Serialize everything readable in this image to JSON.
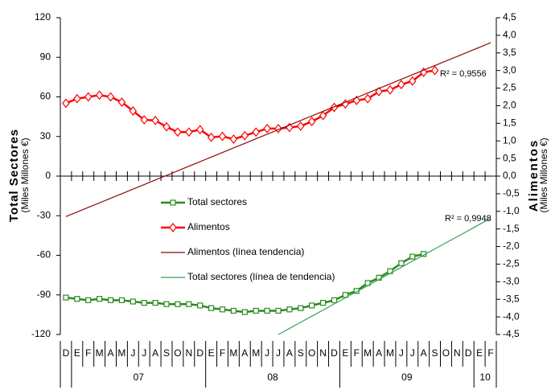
{
  "chart_data": {
    "type": "line",
    "y_axis_title": "Total Sectores",
    "y_axis_subtitle": "(Miles Millones €)",
    "y2_axis_title": "Alimentos",
    "y2_axis_subtitle": "(Miles Millones €)",
    "category_groups": [
      {
        "label": null,
        "categories": [
          "D"
        ]
      },
      {
        "label": "07",
        "categories": [
          "E",
          "F",
          "M",
          "A",
          "M",
          "J",
          "J",
          "A",
          "S",
          "O",
          "N",
          "D"
        ]
      },
      {
        "label": "08",
        "categories": [
          "E",
          "F",
          "M",
          "A",
          "M",
          "J",
          "J",
          "A",
          "S",
          "O",
          "N",
          "D"
        ]
      },
      {
        "label": "09",
        "categories": [
          "E",
          "F",
          "M",
          "A",
          "M",
          "J",
          "J",
          "A",
          "S",
          "O",
          "N",
          "D"
        ]
      },
      {
        "label": "10",
        "categories": [
          "E",
          "F"
        ]
      }
    ],
    "ylim": [
      -120,
      120
    ],
    "yticks": [
      -120,
      -90,
      -60,
      -30,
      0,
      30,
      60,
      90,
      120
    ],
    "y2lim": [
      -4.5,
      4.5
    ],
    "y2ticks": [
      {
        "value": -4.5,
        "label": "-4,5"
      },
      {
        "value": -4,
        "label": "-4,0"
      },
      {
        "value": -3.5,
        "label": "-3,5"
      },
      {
        "value": -3,
        "label": "-3,0"
      },
      {
        "value": -2.5,
        "label": "-2,5"
      },
      {
        "value": -2,
        "label": "-2,0"
      },
      {
        "value": -1.5,
        "label": "-1,5"
      },
      {
        "value": -1,
        "label": "-1,0"
      },
      {
        "value": -0.5,
        "label": "-0,5"
      },
      {
        "value": 0,
        "label": "0,0"
      },
      {
        "value": 0.5,
        "label": "0,5"
      },
      {
        "value": 1,
        "label": "1,0"
      },
      {
        "value": 1.5,
        "label": "1,5"
      },
      {
        "value": 2,
        "label": "2,0"
      },
      {
        "value": 2.5,
        "label": "2,5"
      },
      {
        "value": 3,
        "label": "3,0"
      },
      {
        "value": 3.5,
        "label": "3,5"
      },
      {
        "value": 4,
        "label": "4,0"
      },
      {
        "value": 4.5,
        "label": "4,5"
      }
    ],
    "grid": false,
    "series": [
      {
        "name": "Total sectores",
        "color": "#2a8a1e",
        "marker": "square",
        "width": 2.5,
        "values": [
          -92,
          -93,
          -94,
          -93,
          -94,
          -94,
          -95,
          -96,
          -96,
          -97,
          -97,
          -97,
          -98,
          -100,
          -101,
          -102,
          -103,
          -102,
          -102,
          -102,
          -101,
          -100,
          -98,
          -96,
          -94,
          -90,
          -87,
          -81,
          -77,
          -72,
          -66,
          -61,
          -59
        ]
      },
      {
        "name": "Alimentos",
        "color": "#ff0000",
        "marker": "diamond",
        "axis": "y2",
        "width": 2.5,
        "values": [
          2.07,
          2.2,
          2.25,
          2.3,
          2.25,
          2.1,
          1.85,
          1.6,
          1.58,
          1.4,
          1.25,
          1.25,
          1.32,
          1.1,
          1.13,
          1.05,
          1.15,
          1.25,
          1.35,
          1.35,
          1.38,
          1.42,
          1.55,
          1.72,
          1.95,
          2.05,
          2.15,
          2.2,
          2.4,
          2.45,
          2.6,
          2.7,
          2.95,
          3.0
        ]
      },
      {
        "name": "Alimentos (línea tendencia)",
        "color": "#8b0a0a",
        "axis": "y2",
        "width": 1.2,
        "values": [
          -1.15,
          -1.02,
          -0.89,
          -0.76,
          -0.63,
          -0.5,
          -0.37,
          -0.24,
          -0.11,
          0.02,
          0.15,
          0.28,
          0.41,
          0.54,
          0.67,
          0.8,
          0.93,
          1.06,
          1.19,
          1.32,
          1.45,
          1.58,
          1.71,
          1.84,
          1.97,
          2.1,
          2.23,
          2.36,
          2.49,
          2.62,
          2.75,
          2.88,
          3.01,
          3.14,
          3.27,
          3.4,
          3.53,
          3.66,
          3.79
        ]
      },
      {
        "name": "Total sectores (línea de tendencia)",
        "color": "#3aa05a",
        "width": 1.2,
        "values": [
          null,
          null,
          null,
          null,
          null,
          null,
          null,
          null,
          null,
          null,
          null,
          null,
          null,
          null,
          null,
          null,
          null,
          null,
          null,
          -120,
          -115.4,
          -110.7,
          -106.1,
          -101.5,
          -96.8,
          -92.2,
          -87.6,
          -82.9,
          -78.3,
          -73.7,
          -69.1,
          -64.4,
          -59.8,
          -55.2,
          -50.5,
          -45.9,
          -41.3,
          -36.6,
          -32
        ]
      }
    ],
    "annotations": [
      {
        "text": "R² = 0,9556"
      },
      {
        "text": "R² = 0,9948"
      }
    ]
  }
}
